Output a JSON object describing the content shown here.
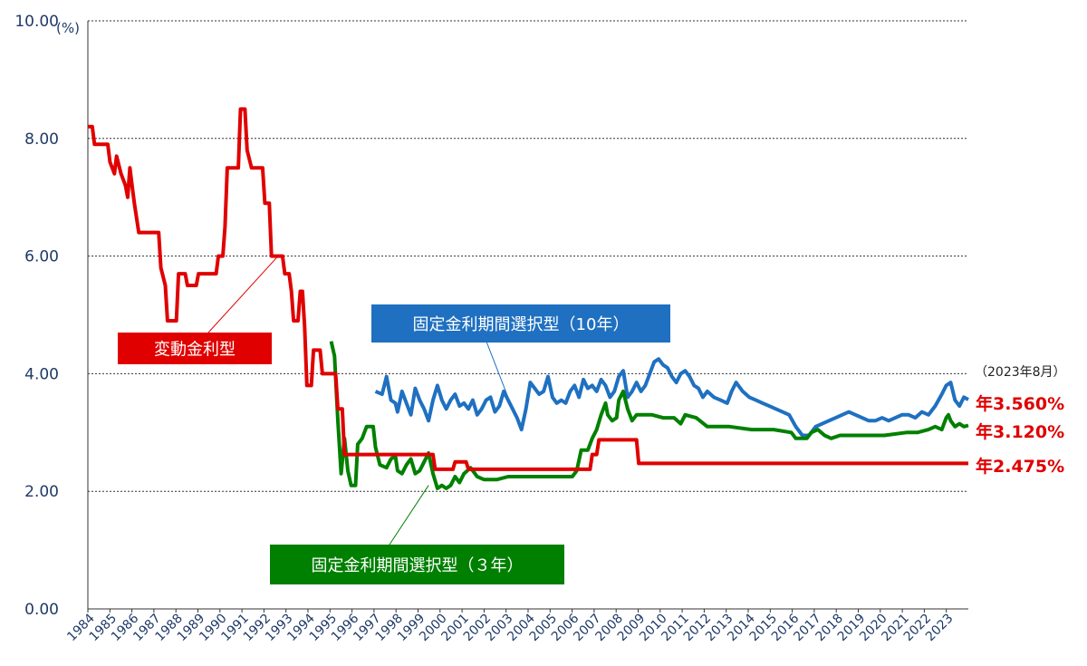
{
  "chart_data": {
    "type": "line",
    "y_unit": "(%)",
    "ylim": [
      0,
      10
    ],
    "y_ticks": [
      "0.00",
      "2.00",
      "4.00",
      "6.00",
      "8.00",
      "10.00"
    ],
    "x_range": [
      1984.0,
      2023.8
    ],
    "x_ticks": [
      "1984",
      "1985",
      "1986",
      "1987",
      "1988",
      "1989",
      "1990",
      "1991",
      "1992",
      "1993",
      "1994",
      "1995",
      "1996",
      "1997",
      "1998",
      "1999",
      "2000",
      "2001",
      "2002",
      "2003",
      "2004",
      "2005",
      "2006",
      "2007",
      "2008",
      "2009",
      "2010",
      "2011",
      "2012",
      "2013",
      "2014",
      "2015",
      "2016",
      "2017",
      "2018",
      "2019",
      "2020",
      "2021",
      "2022",
      "2023"
    ],
    "grid": "horizontal dotted",
    "date_note": "（2023年8月）",
    "series": [
      {
        "name": "変動金利型",
        "color": "#e00000",
        "end_label": "年2.475%",
        "points": [
          [
            1984.0,
            8.2
          ],
          [
            1984.2,
            8.2
          ],
          [
            1984.3,
            7.9
          ],
          [
            1984.9,
            7.9
          ],
          [
            1985.0,
            7.6
          ],
          [
            1985.1,
            7.5
          ],
          [
            1985.2,
            7.4
          ],
          [
            1985.3,
            7.7
          ],
          [
            1985.5,
            7.4
          ],
          [
            1985.7,
            7.2
          ],
          [
            1985.8,
            7.0
          ],
          [
            1985.9,
            7.5
          ],
          [
            1986.0,
            7.2
          ],
          [
            1986.1,
            6.9
          ],
          [
            1986.3,
            6.4
          ],
          [
            1986.8,
            6.4
          ],
          [
            1987.2,
            6.4
          ],
          [
            1987.3,
            5.8
          ],
          [
            1987.5,
            5.5
          ],
          [
            1987.6,
            4.9
          ],
          [
            1988.0,
            4.9
          ],
          [
            1988.1,
            5.7
          ],
          [
            1988.4,
            5.7
          ],
          [
            1988.5,
            5.5
          ],
          [
            1988.9,
            5.5
          ],
          [
            1989.0,
            5.7
          ],
          [
            1989.8,
            5.7
          ],
          [
            1989.9,
            6.0
          ],
          [
            1990.1,
            6.0
          ],
          [
            1990.2,
            6.5
          ],
          [
            1990.3,
            7.5
          ],
          [
            1990.8,
            7.5
          ],
          [
            1990.9,
            8.5
          ],
          [
            1991.1,
            8.5
          ],
          [
            1991.2,
            7.8
          ],
          [
            1991.4,
            7.5
          ],
          [
            1991.9,
            7.5
          ],
          [
            1992.0,
            6.9
          ],
          [
            1992.2,
            6.9
          ],
          [
            1992.3,
            6.0
          ],
          [
            1992.8,
            6.0
          ],
          [
            1992.9,
            5.7
          ],
          [
            1993.1,
            5.7
          ],
          [
            1993.2,
            5.4
          ],
          [
            1993.3,
            4.9
          ],
          [
            1993.5,
            4.9
          ],
          [
            1993.6,
            5.4
          ],
          [
            1993.7,
            5.4
          ],
          [
            1993.8,
            4.8
          ],
          [
            1993.9,
            3.8
          ],
          [
            1994.1,
            3.8
          ],
          [
            1994.2,
            4.4
          ],
          [
            1994.5,
            4.4
          ],
          [
            1994.6,
            4.0
          ],
          [
            1995.2,
            4.0
          ],
          [
            1995.3,
            3.4
          ],
          [
            1995.5,
            3.4
          ],
          [
            1995.6,
            2.625
          ],
          [
            1999.6,
            2.625
          ],
          [
            1999.7,
            2.375
          ],
          [
            2000.5,
            2.375
          ],
          [
            2000.6,
            2.5
          ],
          [
            2001.1,
            2.5
          ],
          [
            2001.2,
            2.375
          ],
          [
            2006.7,
            2.375
          ],
          [
            2006.8,
            2.625
          ],
          [
            2007.0,
            2.625
          ],
          [
            2007.1,
            2.875
          ],
          [
            2008.8,
            2.875
          ],
          [
            2008.9,
            2.475
          ],
          [
            2023.8,
            2.475
          ]
        ]
      },
      {
        "name": "固定金利期間選択型（３年）",
        "color": "#008000",
        "end_label": "年3.120%",
        "points": [
          [
            1995.0,
            4.55
          ],
          [
            1995.15,
            4.3
          ],
          [
            1995.3,
            3.2
          ],
          [
            1995.45,
            2.3
          ],
          [
            1995.6,
            2.9
          ],
          [
            1995.75,
            2.35
          ],
          [
            1995.9,
            2.1
          ],
          [
            1996.1,
            2.1
          ],
          [
            1996.2,
            2.8
          ],
          [
            1996.4,
            2.9
          ],
          [
            1996.6,
            3.1
          ],
          [
            1996.9,
            3.1
          ],
          [
            1997.0,
            2.75
          ],
          [
            1997.2,
            2.45
          ],
          [
            1997.5,
            2.4
          ],
          [
            1997.7,
            2.55
          ],
          [
            1997.9,
            2.6
          ],
          [
            1998.0,
            2.35
          ],
          [
            1998.2,
            2.3
          ],
          [
            1998.4,
            2.45
          ],
          [
            1998.6,
            2.55
          ],
          [
            1998.8,
            2.3
          ],
          [
            1999.0,
            2.35
          ],
          [
            1999.2,
            2.5
          ],
          [
            1999.4,
            2.65
          ],
          [
            1999.6,
            2.3
          ],
          [
            1999.8,
            2.05
          ],
          [
            2000.0,
            2.1
          ],
          [
            2000.2,
            2.05
          ],
          [
            2000.4,
            2.1
          ],
          [
            2000.6,
            2.25
          ],
          [
            2000.8,
            2.15
          ],
          [
            2001.0,
            2.3
          ],
          [
            2001.3,
            2.4
          ],
          [
            2001.6,
            2.25
          ],
          [
            2001.9,
            2.2
          ],
          [
            2002.5,
            2.2
          ],
          [
            2003.0,
            2.25
          ],
          [
            2004.0,
            2.25
          ],
          [
            2005.0,
            2.25
          ],
          [
            2005.9,
            2.25
          ],
          [
            2006.1,
            2.35
          ],
          [
            2006.3,
            2.7
          ],
          [
            2006.6,
            2.7
          ],
          [
            2006.8,
            2.9
          ],
          [
            2007.0,
            3.05
          ],
          [
            2007.2,
            3.3
          ],
          [
            2007.4,
            3.5
          ],
          [
            2007.5,
            3.3
          ],
          [
            2007.7,
            3.2
          ],
          [
            2007.9,
            3.25
          ],
          [
            2008.0,
            3.55
          ],
          [
            2008.2,
            3.7
          ],
          [
            2008.4,
            3.4
          ],
          [
            2008.6,
            3.2
          ],
          [
            2008.8,
            3.3
          ],
          [
            2009.0,
            3.3
          ],
          [
            2009.5,
            3.3
          ],
          [
            2010.0,
            3.25
          ],
          [
            2010.5,
            3.25
          ],
          [
            2010.8,
            3.15
          ],
          [
            2011.0,
            3.3
          ],
          [
            2011.5,
            3.25
          ],
          [
            2012.0,
            3.1
          ],
          [
            2013.0,
            3.1
          ],
          [
            2014.0,
            3.05
          ],
          [
            2015.0,
            3.05
          ],
          [
            2015.8,
            3.0
          ],
          [
            2016.0,
            2.9
          ],
          [
            2016.5,
            2.9
          ],
          [
            2016.7,
            3.0
          ],
          [
            2017.0,
            3.05
          ],
          [
            2017.3,
            2.95
          ],
          [
            2017.6,
            2.9
          ],
          [
            2018.0,
            2.95
          ],
          [
            2018.5,
            2.95
          ],
          [
            2019.0,
            2.95
          ],
          [
            2020.0,
            2.95
          ],
          [
            2021.0,
            3.0
          ],
          [
            2021.5,
            3.0
          ],
          [
            2022.0,
            3.05
          ],
          [
            2022.3,
            3.1
          ],
          [
            2022.6,
            3.05
          ],
          [
            2022.8,
            3.25
          ],
          [
            2022.9,
            3.3
          ],
          [
            2023.0,
            3.2
          ],
          [
            2023.2,
            3.1
          ],
          [
            2023.4,
            3.15
          ],
          [
            2023.6,
            3.1
          ],
          [
            2023.8,
            3.12
          ]
        ]
      },
      {
        "name": "固定金利期間選択型（10年）",
        "color": "#1f70c1",
        "end_label": "年3.560%",
        "points": [
          [
            1997.0,
            3.7
          ],
          [
            1997.3,
            3.65
          ],
          [
            1997.5,
            3.95
          ],
          [
            1997.7,
            3.55
          ],
          [
            1997.9,
            3.5
          ],
          [
            1998.0,
            3.35
          ],
          [
            1998.2,
            3.7
          ],
          [
            1998.4,
            3.5
          ],
          [
            1998.6,
            3.3
          ],
          [
            1998.8,
            3.75
          ],
          [
            1999.0,
            3.55
          ],
          [
            1999.2,
            3.4
          ],
          [
            1999.4,
            3.2
          ],
          [
            1999.6,
            3.55
          ],
          [
            1999.8,
            3.8
          ],
          [
            2000.0,
            3.55
          ],
          [
            2000.2,
            3.4
          ],
          [
            2000.4,
            3.55
          ],
          [
            2000.6,
            3.65
          ],
          [
            2000.8,
            3.45
          ],
          [
            2001.0,
            3.5
          ],
          [
            2001.2,
            3.4
          ],
          [
            2001.4,
            3.55
          ],
          [
            2001.6,
            3.3
          ],
          [
            2001.8,
            3.4
          ],
          [
            2002.0,
            3.55
          ],
          [
            2002.2,
            3.6
          ],
          [
            2002.4,
            3.35
          ],
          [
            2002.6,
            3.45
          ],
          [
            2002.8,
            3.7
          ],
          [
            2003.0,
            3.55
          ],
          [
            2003.2,
            3.4
          ],
          [
            2003.4,
            3.25
          ],
          [
            2003.6,
            3.05
          ],
          [
            2003.8,
            3.4
          ],
          [
            2004.0,
            3.85
          ],
          [
            2004.2,
            3.75
          ],
          [
            2004.4,
            3.65
          ],
          [
            2004.6,
            3.7
          ],
          [
            2004.8,
            3.95
          ],
          [
            2005.0,
            3.6
          ],
          [
            2005.2,
            3.5
          ],
          [
            2005.4,
            3.55
          ],
          [
            2005.6,
            3.5
          ],
          [
            2005.8,
            3.7
          ],
          [
            2006.0,
            3.8
          ],
          [
            2006.2,
            3.6
          ],
          [
            2006.4,
            3.9
          ],
          [
            2006.6,
            3.75
          ],
          [
            2006.8,
            3.8
          ],
          [
            2007.0,
            3.7
          ],
          [
            2007.2,
            3.9
          ],
          [
            2007.4,
            3.8
          ],
          [
            2007.6,
            3.6
          ],
          [
            2007.8,
            3.7
          ],
          [
            2008.0,
            3.95
          ],
          [
            2008.2,
            4.05
          ],
          [
            2008.4,
            3.6
          ],
          [
            2008.6,
            3.7
          ],
          [
            2008.8,
            3.85
          ],
          [
            2009.0,
            3.7
          ],
          [
            2009.2,
            3.8
          ],
          [
            2009.4,
            4.0
          ],
          [
            2009.6,
            4.2
          ],
          [
            2009.8,
            4.25
          ],
          [
            2010.0,
            4.15
          ],
          [
            2010.2,
            4.1
          ],
          [
            2010.4,
            3.95
          ],
          [
            2010.6,
            3.85
          ],
          [
            2010.8,
            4.0
          ],
          [
            2011.0,
            4.05
          ],
          [
            2011.2,
            3.95
          ],
          [
            2011.4,
            3.8
          ],
          [
            2011.6,
            3.75
          ],
          [
            2011.8,
            3.6
          ],
          [
            2012.0,
            3.7
          ],
          [
            2012.3,
            3.6
          ],
          [
            2012.6,
            3.55
          ],
          [
            2012.9,
            3.5
          ],
          [
            2013.1,
            3.7
          ],
          [
            2013.3,
            3.85
          ],
          [
            2013.6,
            3.7
          ],
          [
            2013.9,
            3.6
          ],
          [
            2014.2,
            3.55
          ],
          [
            2014.5,
            3.5
          ],
          [
            2014.8,
            3.45
          ],
          [
            2015.1,
            3.4
          ],
          [
            2015.4,
            3.35
          ],
          [
            2015.7,
            3.3
          ],
          [
            2016.0,
            3.1
          ],
          [
            2016.3,
            2.95
          ],
          [
            2016.6,
            2.95
          ],
          [
            2016.9,
            3.1
          ],
          [
            2017.2,
            3.15
          ],
          [
            2017.5,
            3.2
          ],
          [
            2017.8,
            3.25
          ],
          [
            2018.1,
            3.3
          ],
          [
            2018.4,
            3.35
          ],
          [
            2018.7,
            3.3
          ],
          [
            2019.0,
            3.25
          ],
          [
            2019.3,
            3.2
          ],
          [
            2019.6,
            3.2
          ],
          [
            2019.9,
            3.25
          ],
          [
            2020.2,
            3.2
          ],
          [
            2020.5,
            3.25
          ],
          [
            2020.8,
            3.3
          ],
          [
            2021.1,
            3.3
          ],
          [
            2021.4,
            3.25
          ],
          [
            2021.7,
            3.35
          ],
          [
            2022.0,
            3.3
          ],
          [
            2022.3,
            3.45
          ],
          [
            2022.6,
            3.65
          ],
          [
            2022.8,
            3.8
          ],
          [
            2023.0,
            3.85
          ],
          [
            2023.2,
            3.55
          ],
          [
            2023.4,
            3.45
          ],
          [
            2023.6,
            3.6
          ],
          [
            2023.8,
            3.56
          ]
        ]
      }
    ]
  }
}
